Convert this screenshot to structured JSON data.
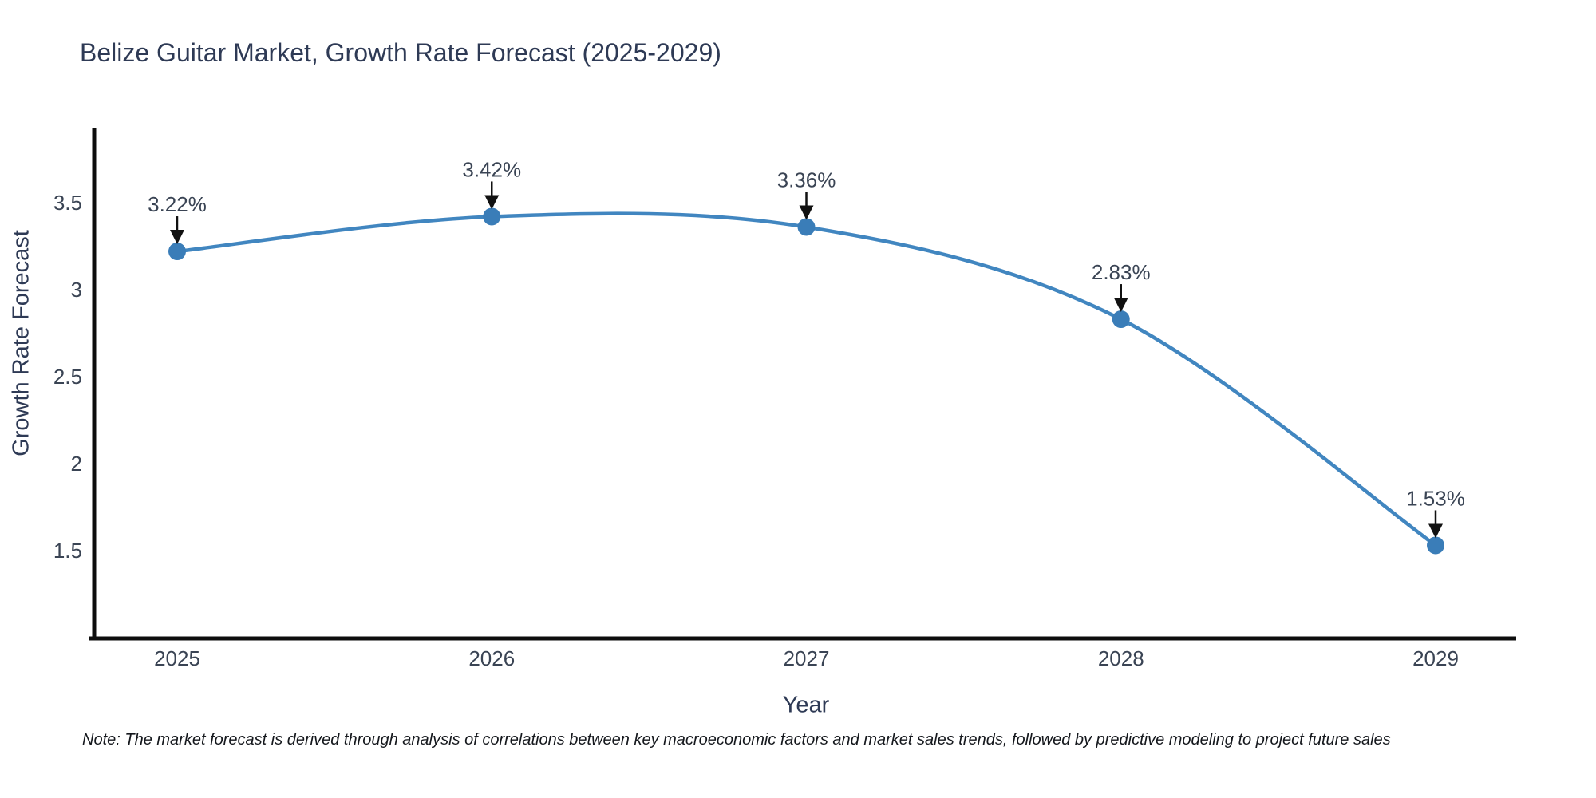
{
  "title": "Belize Guitar Market, Growth Rate Forecast (2025-2029)",
  "footnote": "Note: The market forecast is derived through analysis of correlations between key macroeconomic factors and market sales trends, followed by predictive modeling to project future sales",
  "chart_data": {
    "type": "line",
    "title": "Belize Guitar Market, Growth Rate Forecast (2025-2029)",
    "xlabel": "Year",
    "ylabel": "Growth Rate Forecast",
    "x": [
      2025,
      2026,
      2027,
      2028,
      2029
    ],
    "series": [
      {
        "name": "Growth Rate Forecast",
        "values": [
          3.22,
          3.42,
          3.36,
          2.83,
          1.53
        ],
        "point_labels": [
          "3.22%",
          "3.42%",
          "3.36%",
          "2.83%",
          "1.53%"
        ]
      }
    ],
    "y_ticks": [
      3.5,
      3.0,
      2.5,
      2.0,
      1.5
    ],
    "ylim": [
      1.0,
      3.95
    ],
    "grid": false,
    "legend_position": "none",
    "curve": "smooth-spline",
    "annotations": "value labels with downward black arrows above each marker",
    "colors": {
      "line": "#4186c0",
      "marker": "#3a7db8",
      "arrow": "#111111",
      "spine": "#0d0d0d",
      "tick_label": "#3a4454",
      "title_text": "#2e3a55",
      "background": "#ffffff"
    }
  }
}
